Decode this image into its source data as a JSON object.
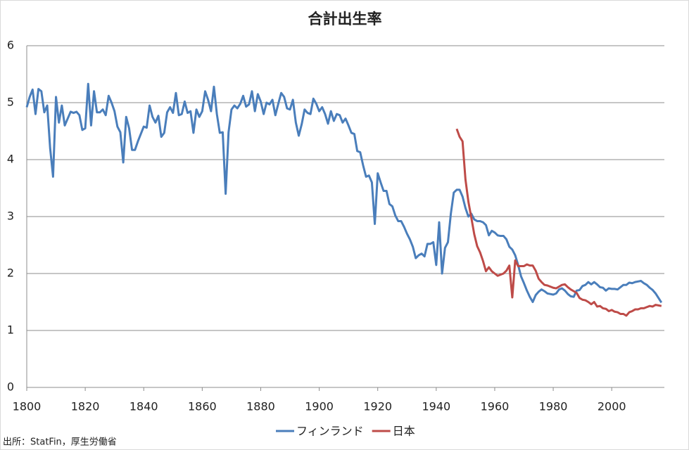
{
  "chart_data": {
    "type": "line",
    "title": "合計出生率",
    "source": "出所：StatFin，厚生労働省",
    "x": [
      1800,
      1801,
      1802,
      1803,
      1804,
      1805,
      1806,
      1807,
      1808,
      1809,
      1810,
      1811,
      1812,
      1813,
      1814,
      1815,
      1816,
      1817,
      1818,
      1819,
      1820,
      1821,
      1822,
      1823,
      1824,
      1825,
      1826,
      1827,
      1828,
      1829,
      1830,
      1831,
      1832,
      1833,
      1834,
      1835,
      1836,
      1837,
      1838,
      1839,
      1840,
      1841,
      1842,
      1843,
      1844,
      1845,
      1846,
      1847,
      1848,
      1849,
      1850,
      1851,
      1852,
      1853,
      1854,
      1855,
      1856,
      1857,
      1858,
      1859,
      1860,
      1861,
      1862,
      1863,
      1864,
      1865,
      1866,
      1867,
      1868,
      1869,
      1870,
      1871,
      1872,
      1873,
      1874,
      1875,
      1876,
      1877,
      1878,
      1879,
      1880,
      1881,
      1882,
      1883,
      1884,
      1885,
      1886,
      1887,
      1888,
      1889,
      1890,
      1891,
      1892,
      1893,
      1894,
      1895,
      1896,
      1897,
      1898,
      1899,
      1900,
      1901,
      1902,
      1903,
      1904,
      1905,
      1906,
      1907,
      1908,
      1909,
      1910,
      1911,
      1912,
      1913,
      1914,
      1915,
      1916,
      1917,
      1918,
      1919,
      1920,
      1921,
      1922,
      1923,
      1924,
      1925,
      1926,
      1927,
      1928,
      1929,
      1930,
      1931,
      1932,
      1933,
      1934,
      1935,
      1936,
      1937,
      1938,
      1939,
      1940,
      1941,
      1942,
      1943,
      1944,
      1945,
      1946,
      1947,
      1948,
      1949,
      1950,
      1951,
      1952,
      1953,
      1954,
      1955,
      1956,
      1957,
      1958,
      1959,
      1960,
      1961,
      1962,
      1963,
      1964,
      1965,
      1966,
      1967,
      1968,
      1969,
      1970,
      1971,
      1972,
      1973,
      1974,
      1975,
      1976,
      1977,
      1978,
      1979,
      1980,
      1981,
      1982,
      1983,
      1984,
      1985,
      1986,
      1987,
      1988,
      1989,
      1990,
      1991,
      1992,
      1993,
      1994,
      1995,
      1996,
      1997,
      1998,
      1999,
      2000,
      2001,
      2002,
      2003,
      2004,
      2005,
      2006,
      2007,
      2008,
      2009,
      2010,
      2011,
      2012,
      2013,
      2014,
      2015,
      2016,
      2017
    ],
    "series": [
      {
        "name": "フィンランド",
        "color": "#4a7ebb",
        "values": [
          4.92,
          5.1,
          5.23,
          4.8,
          5.24,
          5.2,
          4.83,
          4.95,
          4.2,
          3.7,
          5.1,
          4.65,
          4.95,
          4.6,
          4.72,
          4.84,
          4.82,
          4.84,
          4.78,
          4.52,
          4.55,
          5.33,
          4.6,
          5.2,
          4.83,
          4.83,
          4.88,
          4.78,
          5.12,
          5.0,
          4.85,
          4.58,
          4.48,
          3.95,
          4.75,
          4.55,
          4.17,
          4.17,
          4.32,
          4.45,
          4.58,
          4.56,
          4.95,
          4.75,
          4.65,
          4.77,
          4.4,
          4.47,
          4.83,
          4.92,
          4.82,
          5.17,
          4.78,
          4.8,
          5.02,
          4.82,
          4.85,
          4.47,
          4.88,
          4.75,
          4.85,
          5.2,
          5.05,
          4.85,
          5.28,
          4.8,
          4.47,
          4.48,
          3.4,
          4.48,
          4.88,
          4.95,
          4.9,
          4.98,
          5.12,
          4.93,
          4.97,
          5.2,
          4.85,
          5.15,
          5.02,
          4.8,
          5.0,
          4.97,
          5.05,
          4.78,
          4.98,
          5.17,
          5.1,
          4.9,
          4.88,
          5.05,
          4.65,
          4.42,
          4.62,
          4.88,
          4.82,
          4.8,
          5.07,
          4.98,
          4.85,
          4.92,
          4.8,
          4.63,
          4.85,
          4.68,
          4.8,
          4.78,
          4.65,
          4.72,
          4.6,
          4.47,
          4.45,
          4.15,
          4.13,
          3.9,
          3.7,
          3.72,
          3.6,
          2.87,
          3.76,
          3.6,
          3.45,
          3.45,
          3.22,
          3.18,
          3.02,
          2.92,
          2.92,
          2.82,
          2.7,
          2.6,
          2.47,
          2.27,
          2.32,
          2.35,
          2.3,
          2.52,
          2.52,
          2.55,
          2.15,
          2.9,
          2.0,
          2.45,
          2.55,
          3.05,
          3.42,
          3.47,
          3.47,
          3.35,
          3.15,
          3.0,
          3.05,
          2.95,
          2.92,
          2.92,
          2.9,
          2.85,
          2.67,
          2.75,
          2.72,
          2.67,
          2.66,
          2.66,
          2.6,
          2.47,
          2.42,
          2.32,
          2.15,
          1.95,
          1.83,
          1.7,
          1.59,
          1.5,
          1.62,
          1.68,
          1.72,
          1.69,
          1.65,
          1.64,
          1.63,
          1.65,
          1.72,
          1.74,
          1.7,
          1.64,
          1.6,
          1.59,
          1.7,
          1.71,
          1.78,
          1.8,
          1.85,
          1.81,
          1.85,
          1.81,
          1.76,
          1.75,
          1.7,
          1.74,
          1.73,
          1.73,
          1.72,
          1.76,
          1.8,
          1.8,
          1.84,
          1.83,
          1.85,
          1.86,
          1.87,
          1.83,
          1.8,
          1.75,
          1.71,
          1.65,
          1.57,
          1.49
        ]
      },
      {
        "name": "日本",
        "color": "#be4b48",
        "values": [
          null,
          null,
          null,
          null,
          null,
          null,
          null,
          null,
          null,
          null,
          null,
          null,
          null,
          null,
          null,
          null,
          null,
          null,
          null,
          null,
          null,
          null,
          null,
          null,
          null,
          null,
          null,
          null,
          null,
          null,
          null,
          null,
          null,
          null,
          null,
          null,
          null,
          null,
          null,
          null,
          null,
          null,
          null,
          null,
          null,
          null,
          null,
          null,
          null,
          null,
          null,
          null,
          null,
          null,
          null,
          null,
          null,
          null,
          null,
          null,
          null,
          null,
          null,
          null,
          null,
          null,
          null,
          null,
          null,
          null,
          null,
          null,
          null,
          null,
          null,
          null,
          null,
          null,
          null,
          null,
          null,
          null,
          null,
          null,
          null,
          null,
          null,
          null,
          null,
          null,
          null,
          null,
          null,
          null,
          null,
          null,
          null,
          null,
          null,
          null,
          null,
          null,
          null,
          null,
          null,
          null,
          null,
          null,
          null,
          null,
          null,
          null,
          null,
          null,
          null,
          null,
          null,
          null,
          null,
          null,
          null,
          null,
          null,
          null,
          null,
          null,
          null,
          null,
          null,
          null,
          null,
          null,
          null,
          null,
          null,
          null,
          null,
          null,
          null,
          null,
          null,
          null,
          null,
          null,
          null,
          null,
          null,
          4.54,
          4.4,
          4.32,
          3.65,
          3.26,
          2.98,
          2.69,
          2.48,
          2.37,
          2.22,
          2.04,
          2.11,
          2.04,
          2.0,
          1.96,
          1.98,
          2.0,
          2.05,
          2.14,
          1.58,
          2.23,
          2.13,
          2.13,
          2.13,
          2.16,
          2.14,
          2.14,
          2.05,
          1.91,
          1.85,
          1.8,
          1.79,
          1.77,
          1.75,
          1.74,
          1.77,
          1.8,
          1.81,
          1.76,
          1.72,
          1.69,
          1.66,
          1.57,
          1.54,
          1.53,
          1.5,
          1.46,
          1.5,
          1.42,
          1.43,
          1.39,
          1.38,
          1.34,
          1.36,
          1.33,
          1.32,
          1.29,
          1.29,
          1.26,
          1.32,
          1.34,
          1.37,
          1.37,
          1.39,
          1.39,
          1.41,
          1.43,
          1.42,
          1.45,
          1.44,
          1.43
        ]
      }
    ],
    "xlim": [
      1800,
      2018
    ],
    "ylim": [
      0,
      6
    ],
    "xticks": [
      1800,
      1820,
      1840,
      1860,
      1880,
      1900,
      1920,
      1940,
      1960,
      1980,
      2000
    ],
    "yticks": [
      0,
      1,
      2,
      3,
      4,
      5,
      6
    ],
    "grid": true,
    "legend": "bottom"
  }
}
